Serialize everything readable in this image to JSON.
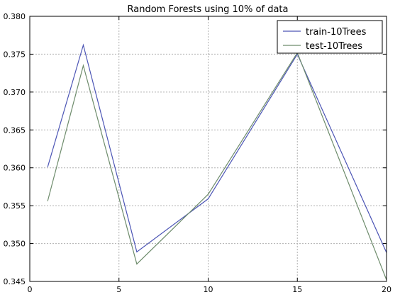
{
  "chart_data": {
    "type": "line",
    "title": "Random Forests using 10% of data",
    "xlabel": "",
    "ylabel": "",
    "xlim": [
      0,
      20
    ],
    "ylim": [
      0.345,
      0.38
    ],
    "xticks": [
      0,
      5,
      10,
      15,
      20
    ],
    "yticks": [
      0.345,
      0.35,
      0.355,
      0.36,
      0.365,
      0.37,
      0.375,
      0.38
    ],
    "xtick_labels": [
      "0",
      "5",
      "10",
      "15",
      "20"
    ],
    "ytick_labels": [
      "0.345",
      "0.350",
      "0.355",
      "0.360",
      "0.365",
      "0.370",
      "0.375",
      "0.380"
    ],
    "grid": true,
    "legend_position": "top-right",
    "x": [
      1,
      3,
      6,
      10,
      15,
      20
    ],
    "series": [
      {
        "name": "train-10Trees",
        "color": "#4c55b5",
        "values": [
          0.3601,
          0.3762,
          0.3489,
          0.3559,
          0.375,
          0.3488
        ]
      },
      {
        "name": "test-10Trees",
        "color": "#6e8c6c",
        "values": [
          0.3556,
          0.3735,
          0.3473,
          0.3565,
          0.3752,
          0.3452
        ]
      }
    ]
  }
}
